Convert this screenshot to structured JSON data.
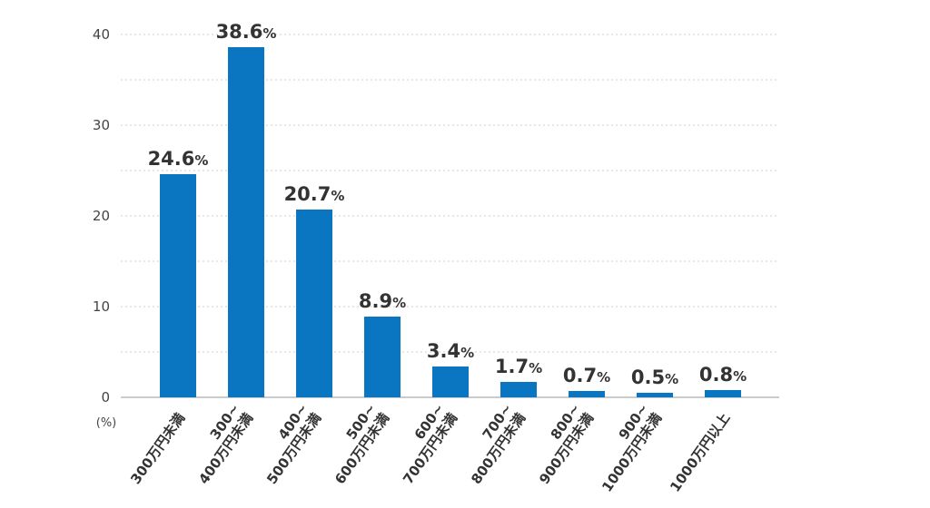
{
  "chart_data": {
    "type": "bar",
    "title": "",
    "xlabel": "",
    "ylabel": "",
    "y_unit_label": "(%)",
    "ylim": [
      0,
      40
    ],
    "yticks": [
      0,
      10,
      20,
      30,
      40
    ],
    "grid": true,
    "bar_color": "#0a76c2",
    "categories": [
      [
        "300万円未満"
      ],
      [
        "300~",
        "400万円未満"
      ],
      [
        "400~",
        "500万円未満"
      ],
      [
        "500~",
        "600万円未満"
      ],
      [
        "600~",
        "700万円未満"
      ],
      [
        "700~",
        "800万円未満"
      ],
      [
        "800~",
        "900万円未満"
      ],
      [
        "900~",
        "1000万円未満"
      ],
      [
        "1000万円以上"
      ]
    ],
    "values": [
      24.6,
      38.6,
      20.7,
      8.9,
      3.4,
      1.7,
      0.7,
      0.5,
      0.8
    ],
    "value_labels": [
      "24.6",
      "38.6",
      "20.7",
      "8.9",
      "3.4",
      "1.7",
      "0.7",
      "0.5",
      "0.8"
    ],
    "value_suffix": "%"
  }
}
